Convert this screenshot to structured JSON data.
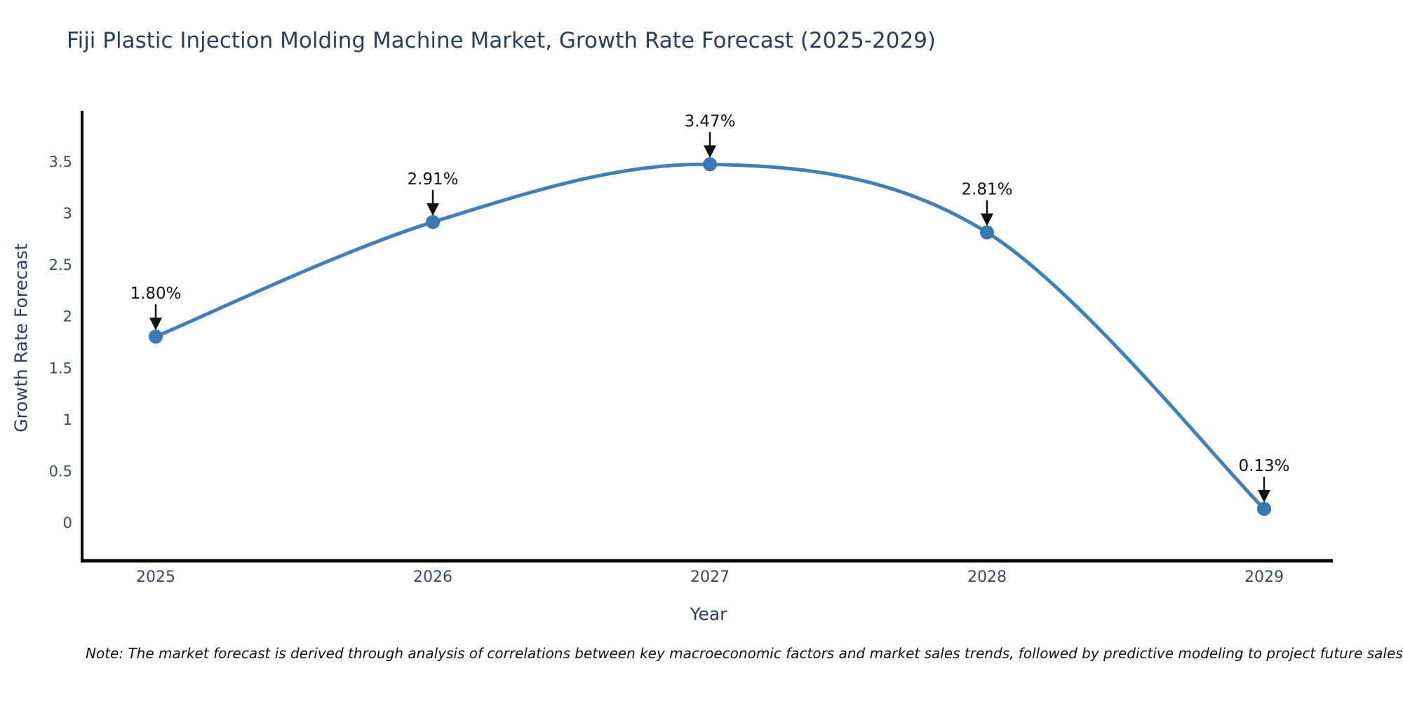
{
  "chart_data": {
    "type": "line",
    "line_shape": "spline",
    "title": "Fiji Plastic Injection Molding Machine Market, Growth Rate Forecast (2025-2029)",
    "xlabel": "Year",
    "ylabel": "Growth Rate Forecast",
    "x": [
      2025,
      2026,
      2027,
      2028,
      2029
    ],
    "series": [
      {
        "name": "Growth Rate Forecast",
        "values": [
          1.8,
          2.91,
          3.47,
          2.81,
          0.13
        ]
      }
    ],
    "point_labels": [
      "1.80%",
      "2.91%",
      "3.47%",
      "2.81%",
      "0.13%"
    ],
    "xticks": [
      "2025",
      "2026",
      "2027",
      "2028",
      "2029"
    ],
    "yticks": [
      "0",
      "0.5",
      "1",
      "1.5",
      "2",
      "2.5",
      "3",
      "3.5"
    ],
    "xlim": [
      2024.73,
      2029.25
    ],
    "ylim": [
      -0.37,
      3.98
    ],
    "grid": false,
    "legend_position": "none",
    "annotations_have_arrows": true
  },
  "footer": {
    "note": "Note: The market forecast is derived through analysis of correlations between key macroeconomic factors and market sales trends, followed by predictive modeling to project future sales"
  },
  "colors": {
    "line": "#3f7fba",
    "marker": "#3a78b5",
    "axis_line": "#000000",
    "tick_label": "#3a4a63",
    "title_text": "#2a3f5f",
    "annotation": "#111111",
    "background": "#ffffff"
  }
}
